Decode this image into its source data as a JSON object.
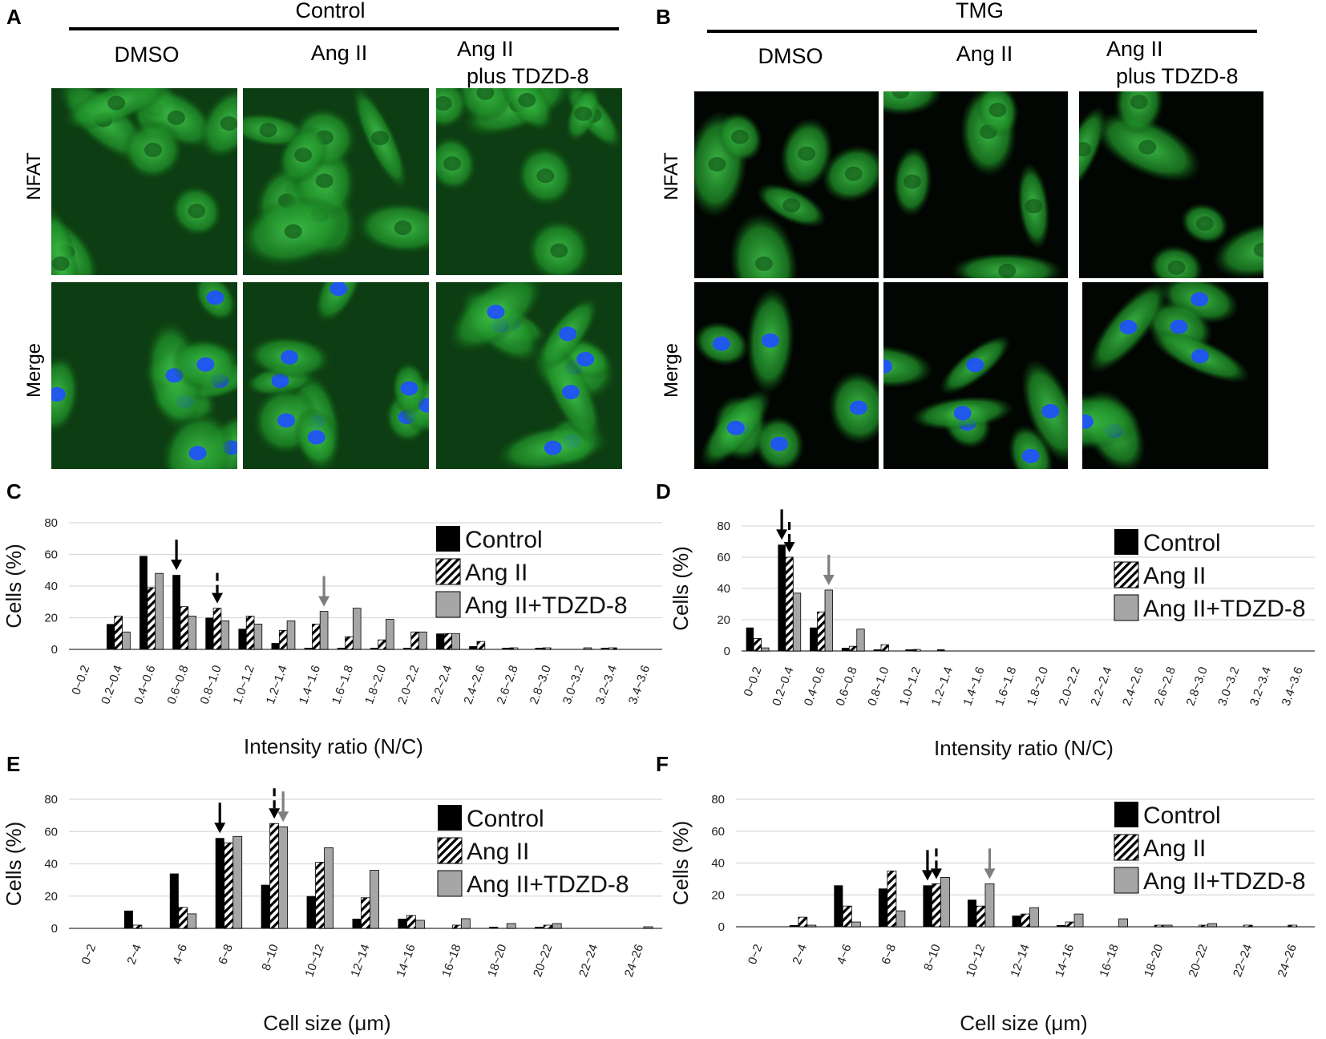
{
  "panels": {
    "A": {
      "letter": "A",
      "group_title": "Control",
      "columns": [
        "DMSO",
        "Ang II",
        "Ang II\nplus TDZD-8"
      ],
      "rows": [
        "NFAT",
        "Merge"
      ]
    },
    "B": {
      "letter": "B",
      "group_title": "TMG",
      "columns": [
        "DMSO",
        "Ang II",
        "Ang II\nplus TDZD-8"
      ],
      "rows": [
        "NFAT",
        "Merge"
      ]
    }
  },
  "colors": {
    "control": "#000000",
    "ang_ii_stripe": "#000000",
    "ang_ii_tdzd8": "#a6a6a6",
    "gridline": "#d9d9d9",
    "arrow_control": "#000000",
    "arrow_tdzd8": "#7f7f7f",
    "cell_green": "#1f9e2a",
    "nucleus_blue": "#1f4fff"
  },
  "chart_data": [
    {
      "id": "C",
      "letter": "C",
      "type": "bar",
      "ylabel": "Cells (%)",
      "xlabel": "Intensity ratio (N/C)",
      "ylim": [
        0,
        80
      ],
      "yticks": [
        0,
        20,
        40,
        60,
        80
      ],
      "grid": true,
      "legend_position": "top-right",
      "categories": [
        "0~0.2",
        "0.2~0.4",
        "0.4~0.6",
        "0.6~0.8",
        "0.8~1.0",
        "1.0~1.2",
        "1.2~1.4",
        "1.4~1.6",
        "1.6~1.8",
        "1.8~2.0",
        "2.0~2.2",
        "2.2~2.4",
        "2.4~2.6",
        "2.6~2.8",
        "2.8~3.0",
        "3.0~3.2",
        "3.2~3.4",
        "3.4~3.6"
      ],
      "series": [
        {
          "name": "Control",
          "values": [
            0,
            16,
            59,
            47,
            20,
            13,
            4,
            1,
            1,
            1,
            1,
            10,
            2,
            1,
            1,
            0,
            1,
            0
          ]
        },
        {
          "name": "Ang II",
          "values": [
            0,
            21,
            39,
            27,
            26,
            21,
            12,
            16,
            8,
            6,
            11,
            10,
            5,
            1,
            1,
            0,
            1,
            0
          ]
        },
        {
          "name": "Ang II+TDZD-8",
          "values": [
            0,
            11,
            48,
            21,
            18,
            16,
            18,
            24,
            26,
            19,
            11,
            10,
            0,
            0,
            0,
            1,
            0,
            0
          ]
        }
      ],
      "arrows": [
        {
          "series": "Control",
          "x": "0.6~0.8",
          "style": "solid"
        },
        {
          "series": "Ang II",
          "x": "0.8~1.0",
          "style": "dashed"
        },
        {
          "series": "Ang II+TDZD-8",
          "x": "1.4~1.6",
          "style": "solid"
        }
      ]
    },
    {
      "id": "D",
      "letter": "D",
      "type": "bar",
      "ylabel": "Cells (%)",
      "xlabel": "Intensity ratio (N/C)",
      "ylim": [
        0,
        80
      ],
      "yticks": [
        0,
        20,
        40,
        60,
        80
      ],
      "grid": true,
      "legend_position": "top-right",
      "categories": [
        "0~0.2",
        "0.2~0.4",
        "0.4~0.6",
        "0.6~0.8",
        "0.8~1.0",
        "1.0~1.2",
        "1.2~1.4",
        "1.4~1.6",
        "1.6~1.8",
        "1.8~2.0",
        "2.0~2.2",
        "2.2~2.4",
        "2.4~2.6",
        "2.6~2.8",
        "2.8~3.0",
        "3.0~3.2",
        "3.2~3.4",
        "3.4~3.6"
      ],
      "series": [
        {
          "name": "Control",
          "values": [
            15,
            68,
            15,
            2,
            1,
            1,
            1,
            0,
            0,
            0,
            0,
            0,
            0,
            0,
            0,
            0,
            0,
            0
          ]
        },
        {
          "name": "Ang II",
          "values": [
            8,
            60,
            25,
            3,
            4,
            1,
            0,
            0,
            0,
            0,
            0,
            0,
            0,
            0,
            0,
            0,
            0,
            0
          ]
        },
        {
          "name": "Ang II+TDZD-8",
          "values": [
            2,
            37,
            39,
            14,
            0,
            0,
            0,
            0,
            0,
            0,
            0,
            0,
            0,
            0,
            0,
            0,
            0,
            0
          ]
        }
      ],
      "arrows": [
        {
          "series": "Control",
          "x": "0.2~0.4",
          "style": "solid"
        },
        {
          "series": "Ang II",
          "x": "0.2~0.4",
          "style": "dashed"
        },
        {
          "series": "Ang II+TDZD-8",
          "x": "0.4~0.6",
          "style": "solid"
        }
      ]
    },
    {
      "id": "E",
      "letter": "E",
      "type": "bar",
      "ylabel": "Cells (%)",
      "xlabel": "Cell size (μm)",
      "ylim": [
        0,
        80
      ],
      "yticks": [
        0,
        20,
        40,
        60,
        80
      ],
      "grid": true,
      "legend_position": "top-right",
      "categories": [
        "0~2",
        "2~4",
        "4~6",
        "6~8",
        "8~10",
        "10~12",
        "12~14",
        "14~16",
        "16~18",
        "18~20",
        "20~22",
        "22~24",
        "24~26"
      ],
      "series": [
        {
          "name": "Control",
          "values": [
            0,
            11,
            34,
            56,
            27,
            20,
            6,
            6,
            0,
            1,
            1,
            0,
            0
          ]
        },
        {
          "name": "Ang II",
          "values": [
            0,
            2,
            13,
            53,
            65,
            41,
            19,
            8,
            2,
            0,
            2,
            0,
            0
          ]
        },
        {
          "name": "Ang II+TDZD-8",
          "values": [
            0,
            0,
            9,
            57,
            63,
            50,
            36,
            5,
            6,
            3,
            3,
            0,
            1
          ]
        }
      ],
      "arrows": [
        {
          "series": "Control",
          "x": "6~8",
          "style": "solid"
        },
        {
          "series": "Ang II",
          "x": "8~10",
          "style": "dashed"
        },
        {
          "series": "Ang II+TDZD-8",
          "x": "8~10",
          "style": "solid"
        }
      ]
    },
    {
      "id": "F",
      "letter": "F",
      "type": "bar",
      "ylabel": "Cells (%)",
      "xlabel": "Cell size (μm)",
      "ylim": [
        0,
        80
      ],
      "yticks": [
        0,
        20,
        40,
        60,
        80
      ],
      "grid": true,
      "legend_position": "top-right",
      "categories": [
        "0~2",
        "2~4",
        "4~6",
        "6~8",
        "8~10",
        "10~12",
        "12~14",
        "14~16",
        "16~18",
        "18~20",
        "20~22",
        "22~24",
        "24~26"
      ],
      "series": [
        {
          "name": "Control",
          "values": [
            0,
            1,
            26,
            24,
            26,
            17,
            7,
            1,
            0,
            0,
            0,
            0,
            0
          ]
        },
        {
          "name": "Ang II",
          "values": [
            0,
            6,
            13,
            35,
            27,
            13,
            8,
            3,
            0,
            1,
            1,
            1,
            1
          ]
        },
        {
          "name": "Ang II+TDZD-8",
          "values": [
            0,
            1,
            3,
            10,
            31,
            27,
            12,
            8,
            5,
            1,
            2,
            0,
            0
          ]
        }
      ],
      "arrows": [
        {
          "series": "Control",
          "x": "8~10",
          "style": "solid"
        },
        {
          "series": "Ang II",
          "x": "8~10",
          "style": "dashed"
        },
        {
          "series": "Ang II+TDZD-8",
          "x": "10~12",
          "style": "solid"
        }
      ]
    }
  ]
}
